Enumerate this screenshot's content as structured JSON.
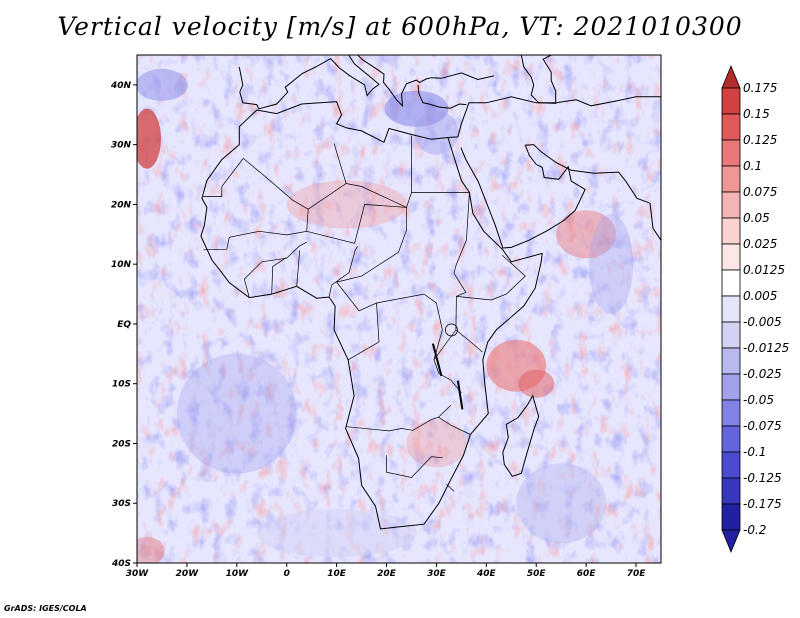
{
  "title": "Vertical velocity [m/s] at 600hPa, VT: 2021010300",
  "credit": "GrADS: IGES/COLA",
  "map": {
    "lon_range": [
      -30,
      75
    ],
    "lat_range": [
      -40,
      45
    ],
    "lat_ticks": [
      {
        "value": 40,
        "label": "40N"
      },
      {
        "value": 30,
        "label": "30N"
      },
      {
        "value": 20,
        "label": "20N"
      },
      {
        "value": 10,
        "label": "10N"
      },
      {
        "value": 0,
        "label": "EQ"
      },
      {
        "value": -10,
        "label": "10S"
      },
      {
        "value": -20,
        "label": "20S"
      },
      {
        "value": -30,
        "label": "30S"
      },
      {
        "value": -40,
        "label": "40S"
      }
    ],
    "lon_ticks": [
      {
        "value": -30,
        "label": "30W"
      },
      {
        "value": -20,
        "label": "20W"
      },
      {
        "value": -10,
        "label": "10W"
      },
      {
        "value": 0,
        "label": "0"
      },
      {
        "value": 10,
        "label": "10E"
      },
      {
        "value": 20,
        "label": "20E"
      },
      {
        "value": 30,
        "label": "30E"
      },
      {
        "value": 40,
        "label": "40E"
      },
      {
        "value": 50,
        "label": "50E"
      },
      {
        "value": 60,
        "label": "60E"
      },
      {
        "value": 70,
        "label": "70E"
      }
    ],
    "colors": {
      "ocean_base": "#e6e6ff",
      "land_base": "#f1e8f0",
      "coastline": "#000000"
    }
  },
  "colorbar": {
    "labels": [
      "0.175",
      "0.15",
      "0.125",
      "0.1",
      "0.075",
      "0.05",
      "0.025",
      "0.0125",
      "0.005",
      "-0.005",
      "-0.0125",
      "-0.025",
      "-0.05",
      "-0.075",
      "-0.1",
      "-0.125",
      "-0.175",
      "-0.2"
    ],
    "colors": [
      "#b42d2d",
      "#d24141",
      "#e15a5a",
      "#eb7878",
      "#f09696",
      "#f5b4b4",
      "#fad2d2",
      "#fde6e6",
      "#ffffff",
      "#e6e6fa",
      "#d2d2f5",
      "#b9b9f0",
      "#a0a0eb",
      "#8282e6",
      "#6464dc",
      "#4b4bd2",
      "#3737be",
      "#2020a0"
    ]
  }
}
